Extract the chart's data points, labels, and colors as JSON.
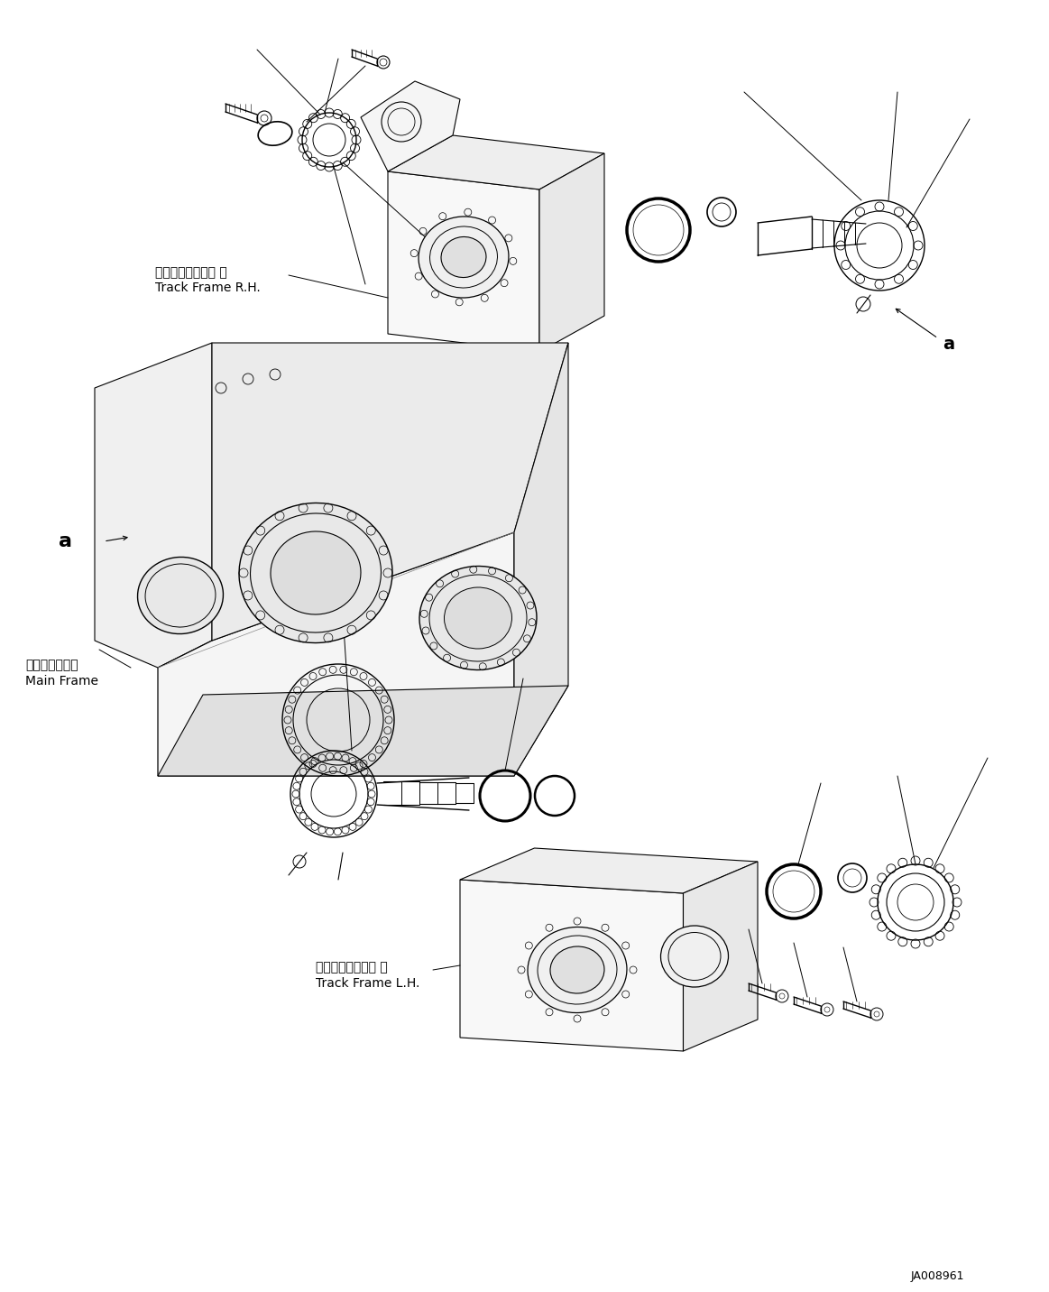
{
  "bg_color": "#ffffff",
  "fig_width": 11.63,
  "fig_height": 14.32,
  "dpi": 100,
  "label_track_frame_rh_jp": "トラックフレーム 右",
  "label_track_frame_rh_en": "Track Frame R.H.",
  "label_track_frame_lh_jp": "トラックフレーム 左",
  "label_track_frame_lh_en": "Track Frame L.H.",
  "label_main_frame_jp": "メインフレーム",
  "label_main_frame_en": "Main Frame",
  "label_a": "a",
  "doc_number": "JA008961",
  "line_color": "#000000",
  "text_color": "#000000",
  "font_size_label": 10,
  "font_size_doc": 9
}
